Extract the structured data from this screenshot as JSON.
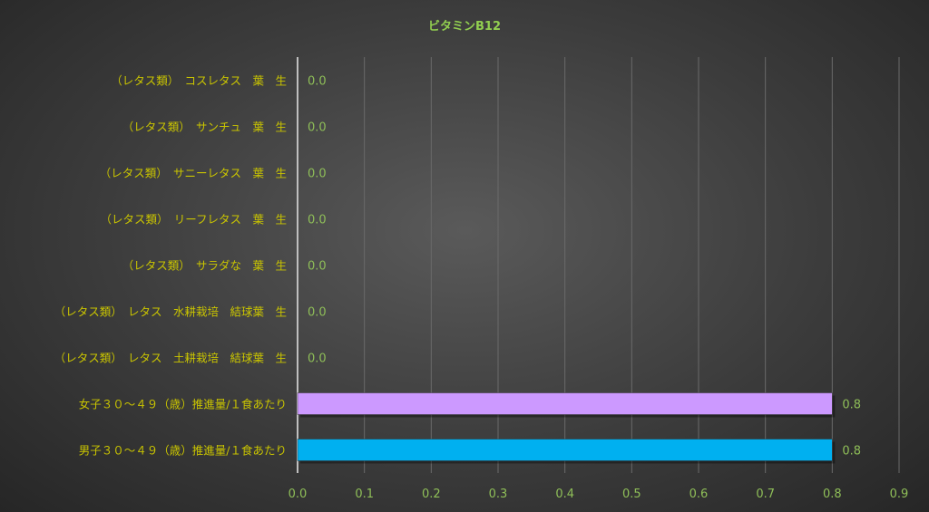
{
  "chart_data": {
    "type": "bar",
    "orientation": "horizontal",
    "title": "ビタミンB12",
    "categories": [
      "（レタス類）　コスレタス　葉　生",
      "（レタス類）　サンチュ　葉　生",
      "（レタス類）　サニーレタス　葉　生",
      "（レタス類）　リーフレタス　葉　生",
      "（レタス類）　サラダな　葉　生",
      "（レタス類）　レタス　水耕栽培　結球葉　生",
      "（レタス類）　レタス　土耕栽培　結球葉　生",
      "女子３０～４９（歳）推進量/１食あたり",
      "男子３０～４９（歳）推進量/１食あたり"
    ],
    "values": [
      0.0,
      0.0,
      0.0,
      0.0,
      0.0,
      0.0,
      0.0,
      0.8,
      0.8
    ],
    "data_labels": [
      "0.0",
      "0.0",
      "0.0",
      "0.0",
      "0.0",
      "0.0",
      "0.0",
      "0.8",
      "0.8"
    ],
    "bar_colors": [
      "#cc99ff",
      "#cc99ff",
      "#cc99ff",
      "#cc99ff",
      "#cc99ff",
      "#cc99ff",
      "#cc99ff",
      "#cc99ff",
      "#00b0f0"
    ],
    "xlim": [
      0,
      0.9
    ],
    "xticks": [
      "0.0",
      "0.1",
      "0.2",
      "0.3",
      "0.4",
      "0.5",
      "0.6",
      "0.7",
      "0.8",
      "0.9"
    ],
    "grid": "vertical",
    "legend": "none",
    "colors": {
      "title": "#92d050",
      "category_labels": "#c9c400",
      "tick_labels": "#8fbf58",
      "data_labels": "#8fbf58"
    }
  }
}
